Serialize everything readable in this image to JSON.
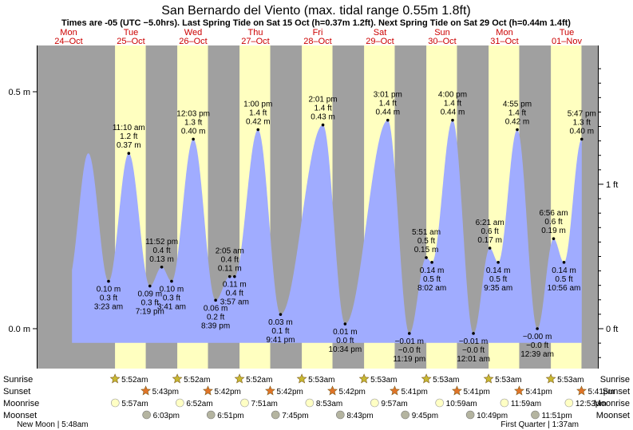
{
  "header": {
    "title": "San Bernardo del Viento (max. tidal range 0.55m 1.8ft)",
    "subtitle": "Times are -05 (UTC −5.0hrs). Last Spring Tide on Sat 15 Oct (h=0.37m 1.2ft). Next Spring Tide on Sat 29 Oct (h=0.44m 1.4ft)"
  },
  "days": [
    {
      "name": "Mon",
      "date": "24–Oct"
    },
    {
      "name": "Tue",
      "date": "25–Oct"
    },
    {
      "name": "Wed",
      "date": "26–Oct"
    },
    {
      "name": "Thu",
      "date": "27–Oct"
    },
    {
      "name": "Fri",
      "date": "28–Oct"
    },
    {
      "name": "Sat",
      "date": "29–Oct"
    },
    {
      "name": "Sun",
      "date": "30–Oct"
    },
    {
      "name": "Mon",
      "date": "31–Oct"
    },
    {
      "name": "Tue",
      "date": "01–Nov"
    }
  ],
  "chart_data": {
    "type": "area",
    "title": "San Bernardo del Viento (max. tidal range 0.55m 1.8ft)",
    "x_start_label": "24-Oct 00:00",
    "y_left_unit": "m",
    "y_right_unit": "ft",
    "y_left_ticks": [
      {
        "value": 0.5,
        "label": "0.5 m"
      },
      {
        "value": 0.0,
        "label": "0.0 m"
      }
    ],
    "y_right_ticks": [
      {
        "value": 1,
        "label": "1 ft"
      },
      {
        "value": 0,
        "label": "0 ft"
      }
    ],
    "ylim_m": [
      -0.087,
      0.58
    ],
    "x_hours_range": [
      0,
      216
    ],
    "daylight": [
      {
        "rise_h": 29.87,
        "set_h": 41.72
      },
      {
        "rise_h": 53.87,
        "set_h": 65.7
      },
      {
        "rise_h": 77.87,
        "set_h": 89.7
      },
      {
        "rise_h": 101.88,
        "set_h": 113.7
      },
      {
        "rise_h": 125.88,
        "set_h": 137.68
      },
      {
        "rise_h": 149.88,
        "set_h": 161.68
      },
      {
        "rise_h": 173.88,
        "set_h": 185.68
      },
      {
        "rise_h": 197.88,
        "set_h": 209.68
      }
    ],
    "tide_extremes": [
      {
        "h": 27.38,
        "time": "3:23 am",
        "m": "0.10 m",
        "ft": "0.3 ft",
        "value": 0.1,
        "kind": "low"
      },
      {
        "h": 35.17,
        "time": "11:10 am",
        "m": "0.37 m",
        "ft": "1.2 ft",
        "value": 0.37,
        "kind": "high"
      },
      {
        "h": 43.32,
        "time": "7:19 pm",
        "m": "0.09 m",
        "ft": "0.3 ft",
        "value": 0.09,
        "kind": "low"
      },
      {
        "h": 47.87,
        "time": "11:52 pm",
        "m": "0.13 m",
        "ft": "0.4 ft",
        "value": 0.13,
        "kind": "high"
      },
      {
        "h": 51.68,
        "time": "3:41 am",
        "m": "0.10 m",
        "ft": "0.3 ft",
        "value": 0.1,
        "kind": "low"
      },
      {
        "h": 60.05,
        "time": "12:03 pm",
        "m": "0.40 m",
        "ft": "1.3 ft",
        "value": 0.4,
        "kind": "high"
      },
      {
        "h": 68.65,
        "time": "8:39 pm",
        "m": "0.06 m",
        "ft": "0.2 ft",
        "value": 0.06,
        "kind": "low"
      },
      {
        "h": 74.08,
        "time": "2:05 am",
        "m": "0.11 m",
        "ft": "0.4 ft",
        "value": 0.11,
        "kind": "high"
      },
      {
        "h": 75.95,
        "time": "3:57 am",
        "m": "0.11 m",
        "ft": "0.4 ft",
        "value": 0.11,
        "kind": "low"
      },
      {
        "h": 85.0,
        "time": "1:00 pm",
        "m": "0.42 m",
        "ft": "1.4 ft",
        "value": 0.42,
        "kind": "high"
      },
      {
        "h": 93.68,
        "time": "9:41 pm",
        "m": "0.03 m",
        "ft": "0.1 ft",
        "value": 0.03,
        "kind": "low"
      },
      {
        "h": 110.02,
        "time": "2:01 pm",
        "m": "0.43 m",
        "ft": "1.4 ft",
        "value": 0.43,
        "kind": "high"
      },
      {
        "h": 118.57,
        "time": "10:34 pm",
        "m": "0.01 m",
        "ft": "0.0 ft",
        "value": 0.01,
        "kind": "low"
      },
      {
        "h": 135.02,
        "time": "3:01 pm",
        "m": "0.44 m",
        "ft": "1.4 ft",
        "value": 0.44,
        "kind": "high"
      },
      {
        "h": 143.32,
        "time": "11:19 pm",
        "m": "−0.01 m",
        "ft": "−0.0 ft",
        "value": -0.01,
        "kind": "low"
      },
      {
        "h": 149.85,
        "time": "5:51 am",
        "m": "0.15 m",
        "ft": "0.5 ft",
        "value": 0.15,
        "kind": "high"
      },
      {
        "h": 152.03,
        "time": "8:02 am",
        "m": "0.14 m",
        "ft": "0.5 ft",
        "value": 0.14,
        "kind": "low"
      },
      {
        "h": 160.0,
        "time": "4:00 pm",
        "m": "0.44 m",
        "ft": "1.4 ft",
        "value": 0.44,
        "kind": "high"
      },
      {
        "h": 168.02,
        "time": "12:01 am",
        "m": "−0.01 m",
        "ft": "−0.0 ft",
        "value": -0.01,
        "kind": "low"
      },
      {
        "h": 174.35,
        "time": "6:21 am",
        "m": "0.17 m",
        "ft": "0.6 ft",
        "value": 0.17,
        "kind": "high"
      },
      {
        "h": 177.58,
        "time": "9:35 am",
        "m": "0.14 m",
        "ft": "0.5 ft",
        "value": 0.14,
        "kind": "low"
      },
      {
        "h": 184.92,
        "time": "4:55 pm",
        "m": "0.42 m",
        "ft": "1.4 ft",
        "value": 0.42,
        "kind": "high"
      },
      {
        "h": 192.65,
        "time": "12:39 am",
        "m": "−0.00 m",
        "ft": "−0.0 ft",
        "value": 0.0,
        "kind": "low"
      },
      {
        "h": 198.93,
        "time": "6:56 am",
        "m": "0.19 m",
        "ft": "0.6 ft",
        "value": 0.19,
        "kind": "high"
      },
      {
        "h": 202.93,
        "time": "10:56 am",
        "m": "0.14 m",
        "ft": "0.5 ft",
        "value": 0.14,
        "kind": "low"
      },
      {
        "h": 209.78,
        "time": "5:47 pm",
        "m": "0.40 m",
        "ft": "1.3 ft",
        "value": 0.4,
        "kind": "high"
      }
    ]
  },
  "rows": {
    "labels": [
      "Sunrise",
      "Sunset",
      "Moonrise",
      "Moonset"
    ],
    "sunrise": [
      {
        "h": 29.87,
        "time": "5:52am"
      },
      {
        "h": 53.87,
        "time": "5:52am"
      },
      {
        "h": 77.87,
        "time": "5:52am"
      },
      {
        "h": 101.88,
        "time": "5:53am"
      },
      {
        "h": 125.88,
        "time": "5:53am"
      },
      {
        "h": 149.88,
        "time": "5:53am"
      },
      {
        "h": 173.88,
        "time": "5:53am"
      },
      {
        "h": 197.88,
        "time": "5:53am"
      }
    ],
    "sunset": [
      {
        "h": 41.72,
        "time": "5:43pm"
      },
      {
        "h": 65.7,
        "time": "5:42pm"
      },
      {
        "h": 89.7,
        "time": "5:42pm"
      },
      {
        "h": 113.7,
        "time": "5:42pm"
      },
      {
        "h": 137.68,
        "time": "5:41pm"
      },
      {
        "h": 161.68,
        "time": "5:41pm"
      },
      {
        "h": 185.68,
        "time": "5:41pm"
      },
      {
        "h": 209.68,
        "time": "5:41pm"
      }
    ],
    "moonrise": [
      {
        "h": 29.95,
        "time": "5:57am"
      },
      {
        "h": 54.87,
        "time": "6:52am"
      },
      {
        "h": 79.85,
        "time": "7:51am"
      },
      {
        "h": 104.88,
        "time": "8:53am"
      },
      {
        "h": 129.95,
        "time": "9:57am"
      },
      {
        "h": 154.98,
        "time": "10:59am"
      },
      {
        "h": 179.98,
        "time": "11:59am"
      },
      {
        "h": 204.88,
        "time": "12:53pm"
      }
    ],
    "moonset": [
      {
        "h": 42.05,
        "time": "6:03pm"
      },
      {
        "h": 66.85,
        "time": "6:51pm"
      },
      {
        "h": 91.75,
        "time": "7:45pm"
      },
      {
        "h": 116.72,
        "time": "8:43pm"
      },
      {
        "h": 141.75,
        "time": "9:45pm"
      },
      {
        "h": 166.82,
        "time": "10:49pm"
      },
      {
        "h": 191.85,
        "time": "11:51pm"
      }
    ]
  },
  "moon_phases": [
    {
      "h": 5.8,
      "text": "New Moon | 5:48am"
    },
    {
      "h": 193.6,
      "text": "First Quarter | 1:37am"
    }
  ],
  "colors": {
    "night": "#a0a0a0",
    "day": "#ffffc0",
    "tide": "#a0acff",
    "day_label": "#cc0000",
    "sun_rise": "#c8b832",
    "sun_set": "#e07428",
    "moonrise": "#ffffc4",
    "moonset": "#b4b4a0"
  }
}
